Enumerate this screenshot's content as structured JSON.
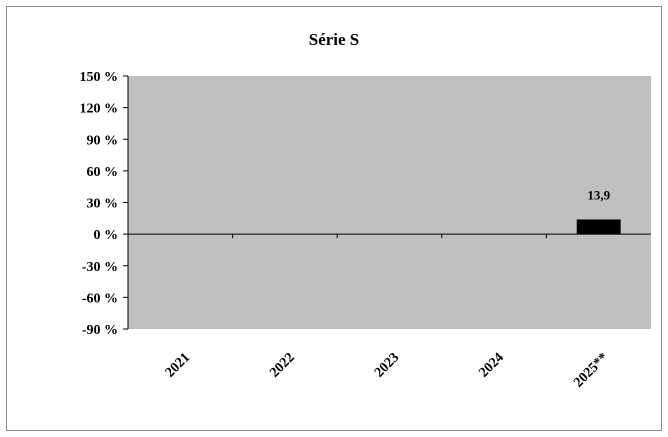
{
  "chart_data": {
    "type": "bar",
    "title": "Série S",
    "categories": [
      "2021",
      "2022",
      "2023",
      "2024",
      "2025**"
    ],
    "series": [
      {
        "values": [
          null,
          null,
          null,
          null,
          13.9
        ]
      }
    ],
    "data_labels": [
      "",
      "",
      "",
      "",
      "13,9"
    ],
    "yticks": [
      "150 %",
      "120 %",
      "90 %",
      "60 %",
      "30 %",
      "0 %",
      "-30 %",
      "-60 %",
      "-90 %"
    ],
    "ytick_values": [
      150,
      120,
      90,
      60,
      30,
      0,
      -30,
      -60,
      -90
    ],
    "ylim": [
      -90,
      150
    ],
    "xlabel": "",
    "ylabel": "",
    "grid": false,
    "legend": "none",
    "colors": {
      "plot_bg": "#c0c0c0",
      "bar": "#000000",
      "frame": "#8c8c8c"
    }
  }
}
